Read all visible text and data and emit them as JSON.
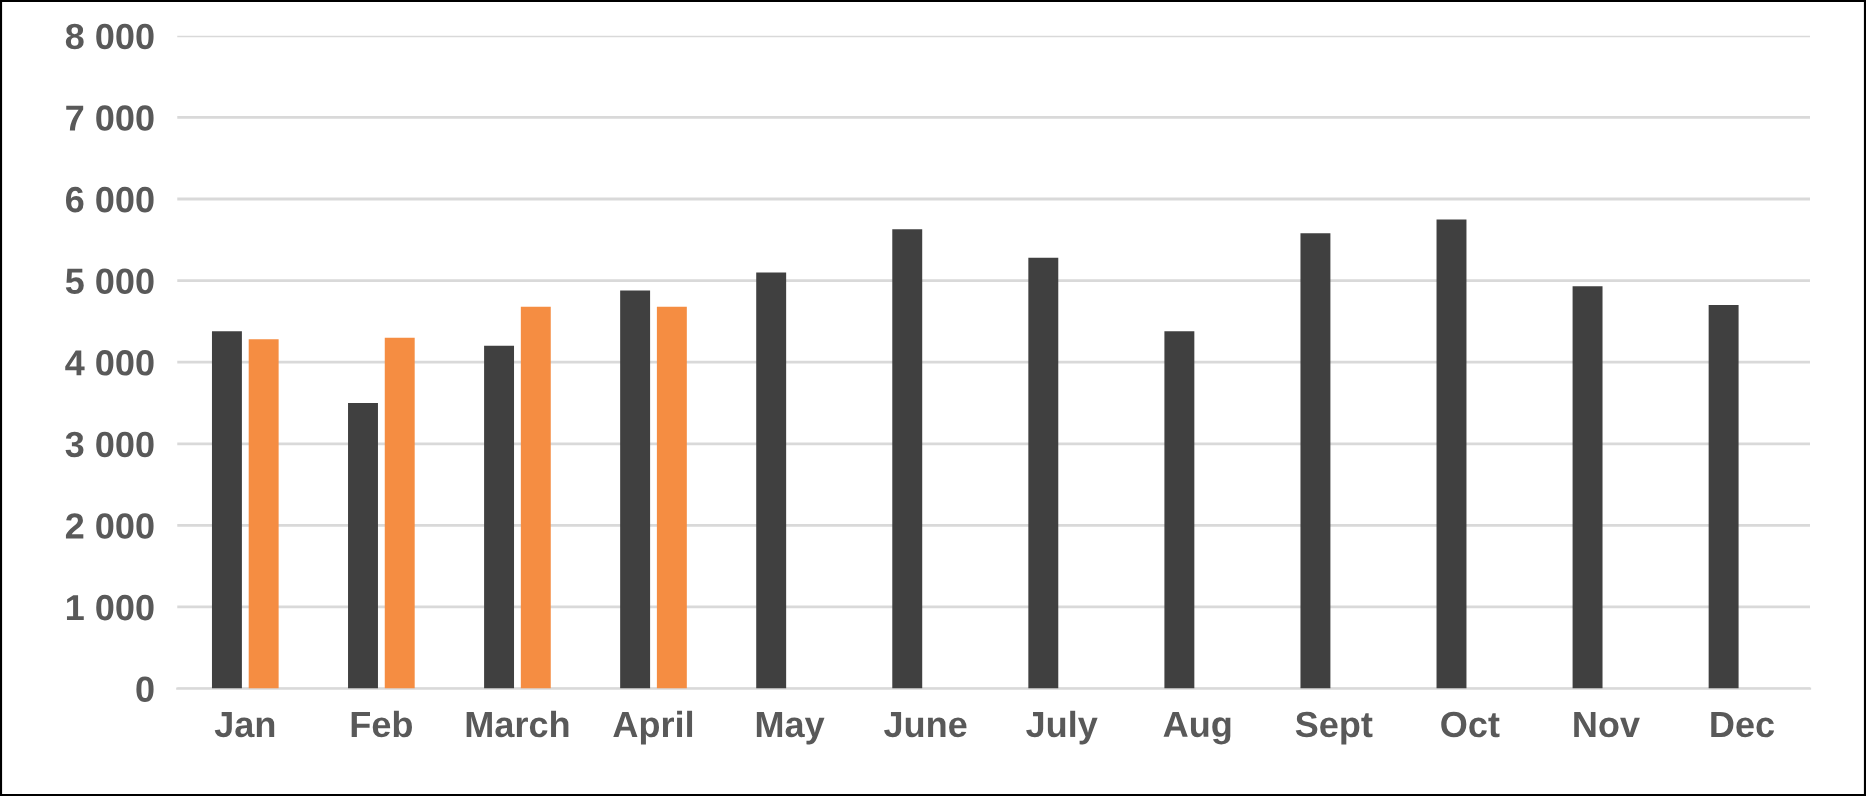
{
  "chart_data": {
    "type": "bar",
    "categories": [
      "Jan",
      "Feb",
      "March",
      "April",
      "May",
      "June",
      "July",
      "Aug",
      "Sept",
      "Oct",
      "Nov",
      "Dec"
    ],
    "series": [
      {
        "color": "#404040",
        "values": [
          4380,
          3500,
          4200,
          4880,
          5100,
          5630,
          5280,
          4380,
          5580,
          5750,
          4930,
          4700
        ]
      },
      {
        "color": "#f58d42",
        "values": [
          4280,
          4300,
          4680,
          4680,
          null,
          null,
          null,
          null,
          null,
          null,
          null,
          null
        ]
      }
    ],
    "ylim": [
      0,
      8000
    ],
    "yticks": [
      0,
      {
        "value": 1000,
        "label": "1 000"
      },
      {
        "value": 2000,
        "label": "2 000"
      },
      {
        "value": 3000,
        "label": "3 000"
      },
      {
        "value": 4000,
        "label": "4 000"
      },
      {
        "value": 5000,
        "label": "5 000"
      },
      {
        "value": 6000,
        "label": "6 000"
      },
      {
        "value": 7000,
        "label": "7 000"
      },
      {
        "value": 8000,
        "label": "8 000"
      }
    ],
    "grid": "y"
  }
}
